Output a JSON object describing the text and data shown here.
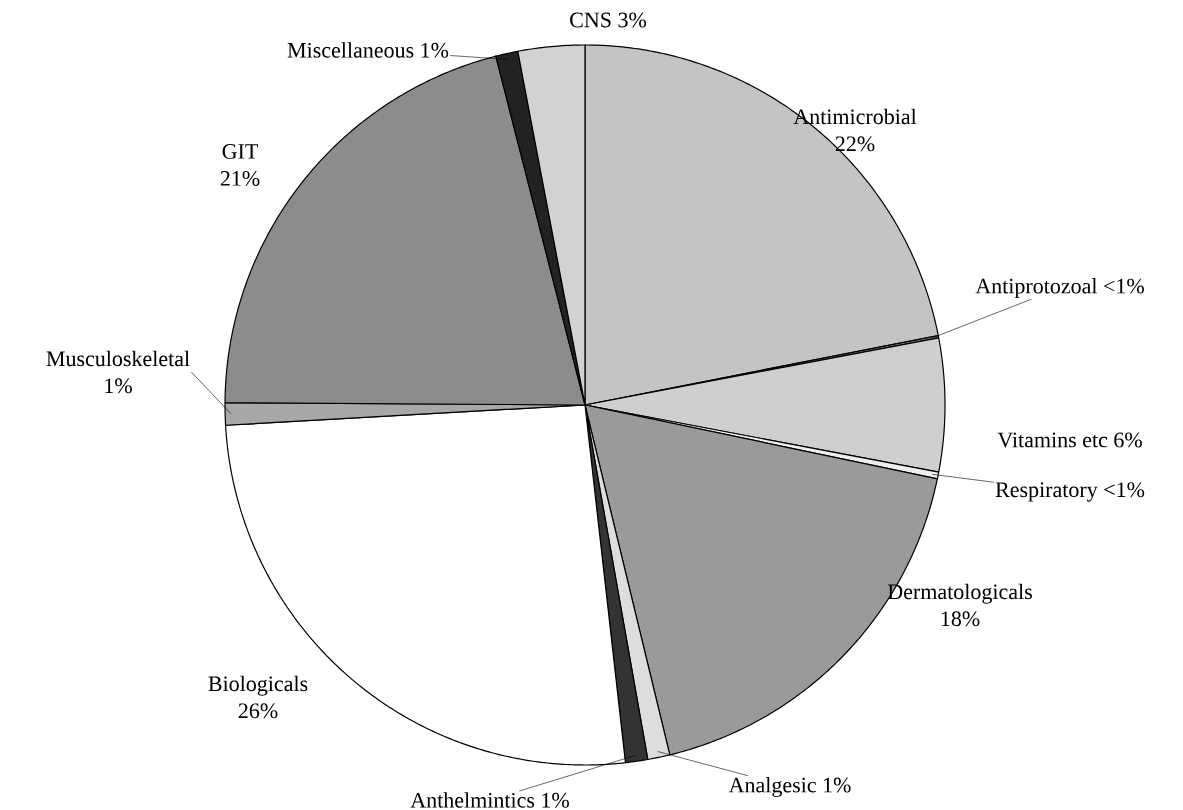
{
  "chart_data": {
    "type": "pie",
    "categories": [
      "Antimicrobial",
      "Antiprotozoal",
      "Vitamins etc",
      "Respiratory",
      "Dermatologicals",
      "Analgesic",
      "Anthelmintics",
      "Biologicals",
      "Musculoskeletal",
      "GIT",
      "Miscellaneous",
      "CNS"
    ],
    "values": [
      22,
      0.1,
      6,
      0.3,
      18,
      1,
      1,
      26,
      1,
      21,
      1,
      3
    ],
    "value_labels": [
      "22%",
      "<1%",
      "6%",
      "<1%",
      "18%",
      "1%",
      "1%",
      "26%",
      "1%",
      "21%",
      "1%",
      "3%"
    ],
    "colors": [
      "#c4c4c4",
      "#888888",
      "#cfcfcf",
      "#eeeeee",
      "#9a9a9a",
      "#dddddd",
      "#333333",
      "#ffffff",
      "#a8a8a8",
      "#8c8c8c",
      "#222222",
      "#d2d2d2"
    ]
  }
}
